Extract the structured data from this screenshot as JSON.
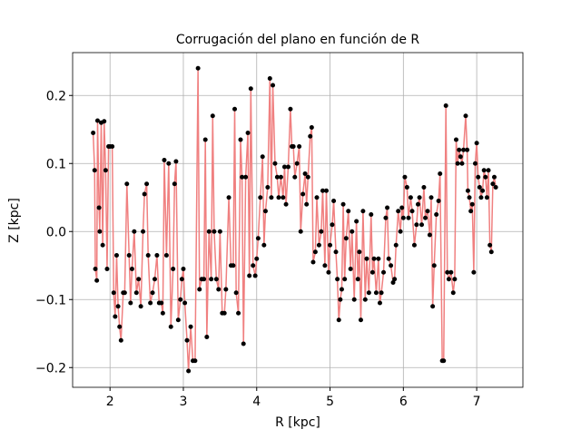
{
  "chart_data": {
    "type": "line",
    "title": "Corrugación del plano en función de R",
    "xlabel": "R [kpc]",
    "ylabel": "Z [kpc]",
    "xlim": [
      1.49,
      7.63
    ],
    "ylim": [
      -0.229,
      0.263
    ],
    "xticks": [
      2,
      3,
      4,
      5,
      6,
      7
    ],
    "yticks": [
      {
        "value": -0.2,
        "label": "−0.2"
      },
      {
        "value": -0.1,
        "label": "−0.1"
      },
      {
        "value": 0,
        "label": "0.0"
      },
      {
        "value": 0.1,
        "label": "0.1"
      },
      {
        "value": 0.2,
        "label": "0.2"
      }
    ],
    "grid": true,
    "x": [
      1.77,
      1.79,
      1.8,
      1.82,
      1.83,
      1.85,
      1.86,
      1.88,
      1.9,
      1.92,
      1.94,
      1.96,
      1.98,
      2.0,
      2.03,
      2.05,
      2.07,
      2.09,
      2.11,
      2.13,
      2.15,
      2.18,
      2.2,
      2.23,
      2.26,
      2.28,
      2.3,
      2.33,
      2.36,
      2.39,
      2.42,
      2.45,
      2.47,
      2.5,
      2.52,
      2.55,
      2.58,
      2.61,
      2.64,
      2.67,
      2.7,
      2.72,
      2.74,
      2.77,
      2.8,
      2.83,
      2.86,
      2.88,
      2.9,
      2.93,
      2.96,
      2.98,
      3.0,
      3.02,
      3.05,
      3.07,
      3.1,
      3.13,
      3.16,
      3.2,
      3.22,
      3.25,
      3.28,
      3.3,
      3.32,
      3.35,
      3.38,
      3.4,
      3.42,
      3.45,
      3.48,
      3.5,
      3.53,
      3.56,
      3.58,
      3.62,
      3.65,
      3.68,
      3.7,
      3.72,
      3.75,
      3.78,
      3.8,
      3.82,
      3.85,
      3.88,
      3.9,
      3.92,
      3.95,
      3.98,
      4.0,
      4.02,
      4.05,
      4.08,
      4.1,
      4.12,
      4.15,
      4.18,
      4.2,
      4.22,
      4.25,
      4.28,
      4.3,
      4.33,
      4.36,
      4.38,
      4.4,
      4.43,
      4.46,
      4.48,
      4.5,
      4.52,
      4.55,
      4.58,
      4.6,
      4.63,
      4.66,
      4.68,
      4.7,
      4.73,
      4.75,
      4.77,
      4.8,
      4.82,
      4.85,
      4.88,
      4.9,
      4.93,
      4.95,
      4.98,
      5.0,
      5.03,
      5.05,
      5.08,
      5.1,
      5.12,
      5.14,
      5.16,
      5.18,
      5.2,
      5.22,
      5.25,
      5.28,
      5.3,
      5.33,
      5.36,
      5.38,
      5.4,
      5.42,
      5.45,
      5.48,
      5.5,
      5.53,
      5.56,
      5.58,
      5.6,
      5.63,
      5.66,
      5.68,
      5.7,
      5.73,
      5.76,
      5.78,
      5.8,
      5.83,
      5.86,
      5.88,
      5.9,
      5.93,
      5.96,
      5.98,
      6.0,
      6.02,
      6.05,
      6.07,
      6.1,
      6.12,
      6.15,
      6.18,
      6.2,
      6.22,
      6.25,
      6.28,
      6.3,
      6.33,
      6.36,
      6.38,
      6.4,
      6.42,
      6.45,
      6.48,
      6.5,
      6.53,
      6.55,
      6.58,
      6.6,
      6.62,
      6.65,
      6.68,
      6.7,
      6.72,
      6.74,
      6.76,
      6.78,
      6.8,
      6.82,
      6.85,
      6.87,
      6.88,
      6.9,
      6.92,
      6.94,
      6.96,
      6.98,
      7.0,
      7.02,
      7.04,
      7.06,
      7.08,
      7.1,
      7.12,
      7.14,
      7.16,
      7.18,
      7.2,
      7.22,
      7.24,
      7.26
    ],
    "series": [
      {
        "line_color": "#f08080",
        "marker_color": "#000000",
        "values": [
          0.145,
          0.09,
          -0.055,
          -0.072,
          0.163,
          0.035,
          0.0,
          0.16,
          -0.02,
          0.162,
          0.09,
          -0.055,
          0.125,
          0.125,
          0.125,
          -0.09,
          -0.125,
          -0.035,
          -0.11,
          -0.14,
          -0.16,
          -0.09,
          -0.09,
          0.07,
          -0.035,
          -0.105,
          -0.055,
          0.0,
          -0.09,
          -0.07,
          -0.11,
          0.0,
          0.055,
          0.07,
          -0.035,
          -0.105,
          -0.09,
          -0.07,
          -0.035,
          -0.105,
          -0.105,
          -0.12,
          0.105,
          -0.035,
          0.1,
          -0.14,
          -0.055,
          0.07,
          0.103,
          -0.13,
          -0.1,
          -0.07,
          -0.055,
          -0.105,
          -0.16,
          -0.205,
          -0.14,
          -0.19,
          -0.19,
          0.24,
          -0.085,
          -0.07,
          -0.07,
          0.135,
          -0.155,
          0.0,
          -0.07,
          0.17,
          0.0,
          -0.07,
          -0.085,
          0.0,
          -0.12,
          -0.12,
          -0.085,
          0.05,
          -0.05,
          -0.05,
          0.18,
          -0.09,
          -0.12,
          0.135,
          0.08,
          -0.165,
          0.08,
          0.145,
          -0.065,
          0.21,
          -0.05,
          -0.065,
          -0.04,
          -0.01,
          0.05,
          0.11,
          -0.02,
          0.03,
          0.065,
          0.225,
          0.05,
          0.215,
          0.1,
          0.08,
          0.05,
          0.08,
          0.05,
          0.095,
          0.04,
          0.095,
          0.18,
          0.125,
          0.125,
          0.08,
          0.1,
          0.125,
          0.0,
          0.055,
          0.085,
          0.04,
          0.08,
          0.14,
          0.153,
          -0.045,
          -0.03,
          0.05,
          -0.02,
          0.0,
          0.06,
          -0.05,
          0.06,
          -0.06,
          -0.02,
          0.01,
          0.045,
          -0.03,
          -0.07,
          -0.13,
          -0.1,
          -0.085,
          0.04,
          -0.07,
          -0.01,
          0.03,
          -0.055,
          0.0,
          -0.1,
          0.015,
          -0.07,
          -0.03,
          -0.13,
          0.03,
          -0.1,
          -0.04,
          -0.09,
          0.025,
          -0.06,
          -0.04,
          -0.09,
          -0.04,
          -0.105,
          -0.09,
          -0.06,
          0.02,
          0.035,
          -0.04,
          -0.05,
          -0.075,
          -0.07,
          -0.02,
          0.03,
          0.0,
          0.035,
          0.02,
          0.08,
          0.065,
          0.02,
          0.05,
          0.03,
          -0.02,
          0.01,
          0.04,
          0.05,
          0.01,
          0.065,
          0.02,
          0.03,
          -0.005,
          0.05,
          -0.11,
          -0.05,
          0.025,
          0.045,
          0.085,
          -0.19,
          -0.19,
          0.185,
          -0.06,
          -0.07,
          -0.06,
          -0.09,
          -0.07,
          0.135,
          0.1,
          0.12,
          0.11,
          0.1,
          0.12,
          0.17,
          0.12,
          0.06,
          0.05,
          0.03,
          0.04,
          -0.06,
          0.1,
          0.13,
          0.08,
          0.065,
          0.05,
          0.06,
          0.09,
          0.08,
          0.05,
          0.09,
          -0.02,
          -0.03,
          0.07,
          0.08,
          0.065
        ]
      }
    ]
  }
}
